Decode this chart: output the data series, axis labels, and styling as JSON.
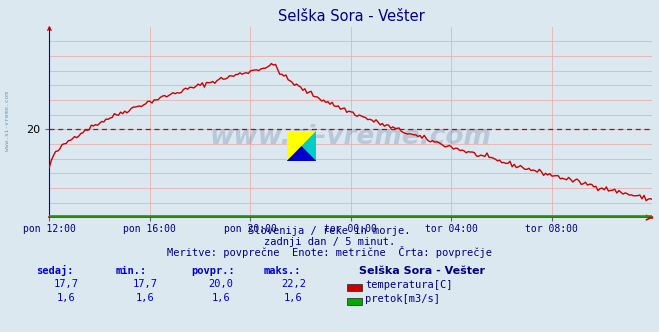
{
  "title": "Selška Sora - Vešter",
  "title_color": "#000080",
  "bg_color": "#dce8f0",
  "plot_bg_color": "#dce8f0",
  "x_labels": [
    "pon 12:00",
    "pon 16:00",
    "pon 20:00",
    "tor 00:00",
    "tor 04:00",
    "tor 08:00"
  ],
  "x_ticks": [
    0,
    48,
    96,
    144,
    192,
    240
  ],
  "x_max": 288,
  "y_min": 17.0,
  "y_max": 23.5,
  "y_ticks": [
    20
  ],
  "temp_color": "#cc0000",
  "flow_color": "#00aa00",
  "dashed_line_color": "#cc0000",
  "dashed_line_y": 20.0,
  "watermark_text": "www.si-vreme.com",
  "watermark_color": "#1a3a6e",
  "watermark_alpha": 0.18,
  "footer_line1": "Slovenija / reke in morje.",
  "footer_line2": "zadnji dan / 5 minut.",
  "footer_line3": "Meritve: povprečne  Enote: metrične  Črta: povprečje",
  "footer_color": "#000080",
  "table_headers": [
    "sedaj:",
    "min.:",
    "povpr.:",
    "maks.:"
  ],
  "table_header_color": "#0000cc",
  "table_values_temp": [
    "17,7",
    "17,7",
    "20,0",
    "22,2"
  ],
  "table_values_flow": [
    "1,6",
    "1,6",
    "1,6",
    "1,6"
  ],
  "table_value_color": "#0000cc",
  "legend_title": "Selška Sora - Vešter",
  "legend_title_color": "#000080",
  "legend_temp_label": "temperatura[C]",
  "legend_flow_label": "pretok[m3/s]",
  "sidebar_text": "www.si-vreme.com",
  "sidebar_color": "#5588aa",
  "grid_pink": "#e8b0b0",
  "spine_color": "#888888",
  "bottom_spine_color": "#cc0000",
  "left_spine_color": "#0000cc"
}
